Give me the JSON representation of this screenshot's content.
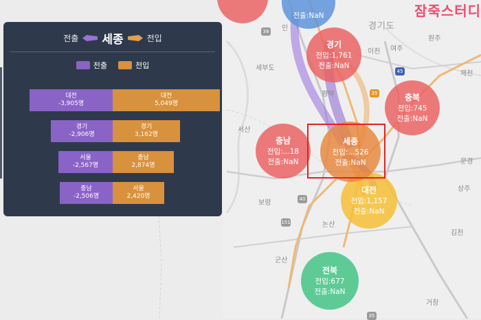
{
  "brand": "잠죽스터디",
  "panel": {
    "out_label": "전출",
    "center": "세종",
    "in_label": "전입",
    "legend_out": "전출",
    "legend_in": "전입",
    "bars": [
      {
        "out_region": "대전",
        "out_value": "-3,905명",
        "in_region": "대전",
        "in_value": "5,049명"
      },
      {
        "out_region": "경기",
        "out_value": "-2,906명",
        "in_region": "경기",
        "in_value": "3,162명"
      },
      {
        "out_region": "서울",
        "out_value": "-2,567명",
        "in_region": "충남",
        "in_value": "2,874명"
      },
      {
        "out_region": "충남",
        "out_value": "-2,506명",
        "in_region": "서울",
        "in_value": "2,420명"
      }
    ]
  },
  "colors": {
    "out": "#8a63c7",
    "in": "#d8913c",
    "panel": "#2e3a4b",
    "select": "#e0221f"
  },
  "bubbles": {
    "gyeonggi": {
      "name": "경기",
      "in": "전입:1,761",
      "out": "전출:NaN"
    },
    "chungbuk": {
      "name": "충북",
      "in": "전입:745",
      "out": "전출:NaN"
    },
    "chungnam": {
      "name": "충남",
      "in": "전입:...18",
      "out": "전출:NaN"
    },
    "sejong": {
      "name": "세종",
      "in": "전입:...526",
      "out": "전출:NaN"
    },
    "daejeon": {
      "name": "대전",
      "in": "전입:1,157",
      "out": "전출:NaN"
    },
    "jeonbuk": {
      "name": "전북",
      "in": "전입:677",
      "out": "전출:NaN"
    },
    "top_partial": {
      "out": "전출:NaN"
    }
  },
  "places": {
    "gyeonggido": "경기도",
    "wonju": "원주",
    "icheon": "이천",
    "yeoju": "여주",
    "jecheon": "제천",
    "pyeongtaek": "평택",
    "seosan": "서산",
    "sejongbu": "세부도",
    "munkyeong": "문경",
    "sangju": "상주",
    "boryeong": "보령",
    "nonsan": "논산",
    "gunsan": "군산",
    "gimcheon": "김천",
    "geochang": "거창",
    "incheon": "인",
    "yongin": "용인"
  }
}
